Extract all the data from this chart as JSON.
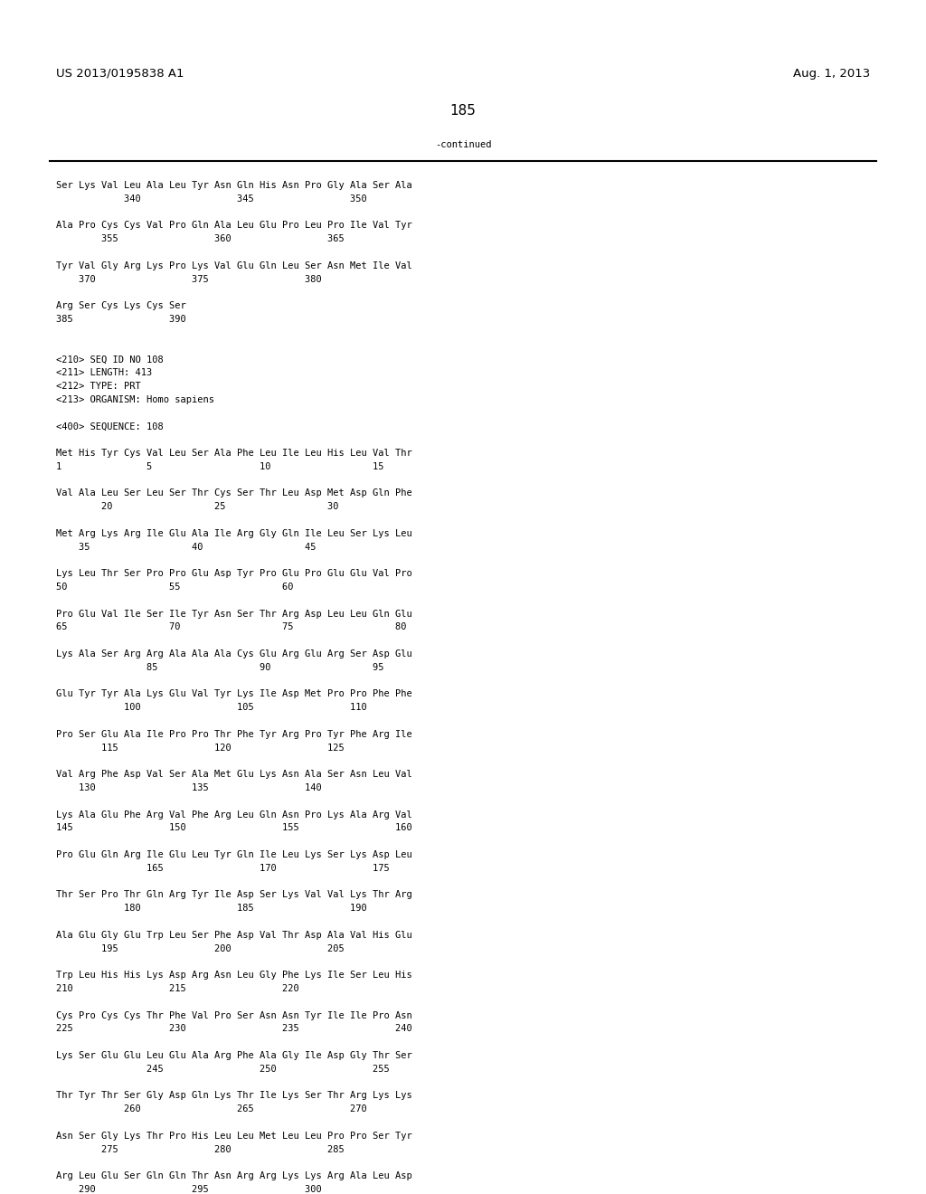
{
  "patent_number": "US 2013/0195838 A1",
  "date": "Aug. 1, 2013",
  "page_number": "185",
  "continued_label": "-continued",
  "background_color": "#ffffff",
  "text_color": "#000000",
  "mono_font_size": 7.5,
  "header_font_size": 9.5,
  "lines": [
    "Ser Lys Val Leu Ala Leu Tyr Asn Gln His Asn Pro Gly Ala Ser Ala",
    "            340                 345                 350",
    "",
    "Ala Pro Cys Cys Val Pro Gln Ala Leu Glu Pro Leu Pro Ile Val Tyr",
    "        355                 360                 365",
    "",
    "Tyr Val Gly Arg Lys Pro Lys Val Glu Gln Leu Ser Asn Met Ile Val",
    "    370                 375                 380",
    "",
    "Arg Ser Cys Lys Cys Ser",
    "385                 390",
    "",
    "",
    "<210> SEQ ID NO 108",
    "<211> LENGTH: 413",
    "<212> TYPE: PRT",
    "<213> ORGANISM: Homo sapiens",
    "",
    "<400> SEQUENCE: 108",
    "",
    "Met His Tyr Cys Val Leu Ser Ala Phe Leu Ile Leu His Leu Val Thr",
    "1               5                   10                  15",
    "",
    "Val Ala Leu Ser Leu Ser Thr Cys Ser Thr Leu Asp Met Asp Gln Phe",
    "        20                  25                  30",
    "",
    "Met Arg Lys Arg Ile Glu Ala Ile Arg Gly Gln Ile Leu Ser Lys Leu",
    "    35                  40                  45",
    "",
    "Lys Leu Thr Ser Pro Pro Glu Asp Tyr Pro Glu Pro Glu Glu Val Pro",
    "50                  55                  60",
    "",
    "Pro Glu Val Ile Ser Ile Tyr Asn Ser Thr Arg Asp Leu Leu Gln Glu",
    "65                  70                  75                  80",
    "",
    "Lys Ala Ser Arg Arg Ala Ala Ala Cys Glu Arg Glu Arg Ser Asp Glu",
    "                85                  90                  95",
    "",
    "Glu Tyr Tyr Ala Lys Glu Val Tyr Lys Ile Asp Met Pro Pro Phe Phe",
    "            100                 105                 110",
    "",
    "Pro Ser Glu Ala Ile Pro Pro Thr Phe Tyr Arg Pro Tyr Phe Arg Ile",
    "        115                 120                 125",
    "",
    "Val Arg Phe Asp Val Ser Ala Met Glu Lys Asn Ala Ser Asn Leu Val",
    "    130                 135                 140",
    "",
    "Lys Ala Glu Phe Arg Val Phe Arg Leu Gln Asn Pro Lys Ala Arg Val",
    "145                 150                 155                 160",
    "",
    "Pro Glu Gln Arg Ile Glu Leu Tyr Gln Ile Leu Lys Ser Lys Asp Leu",
    "                165                 170                 175",
    "",
    "Thr Ser Pro Thr Gln Arg Tyr Ile Asp Ser Lys Val Val Lys Thr Arg",
    "            180                 185                 190",
    "",
    "Ala Glu Gly Glu Trp Leu Ser Phe Asp Val Thr Asp Ala Val His Glu",
    "        195                 200                 205",
    "",
    "Trp Leu His His Lys Asp Arg Asn Leu Gly Phe Lys Ile Ser Leu His",
    "210                 215                 220",
    "",
    "Cys Pro Cys Cys Thr Phe Val Pro Ser Asn Asn Tyr Ile Ile Pro Asn",
    "225                 230                 235                 240",
    "",
    "Lys Ser Glu Glu Leu Glu Ala Arg Phe Ala Gly Ile Asp Gly Thr Ser",
    "                245                 250                 255",
    "",
    "Thr Tyr Thr Ser Gly Asp Gln Lys Thr Ile Lys Ser Thr Arg Lys Lys",
    "            260                 265                 270",
    "",
    "Asn Ser Gly Lys Thr Pro His Leu Leu Met Leu Leu Pro Pro Ser Tyr",
    "        275                 280                 285",
    "",
    "Arg Leu Glu Ser Gln Gln Thr Asn Arg Arg Lys Lys Arg Ala Leu Asp",
    "    290                 295                 300"
  ]
}
